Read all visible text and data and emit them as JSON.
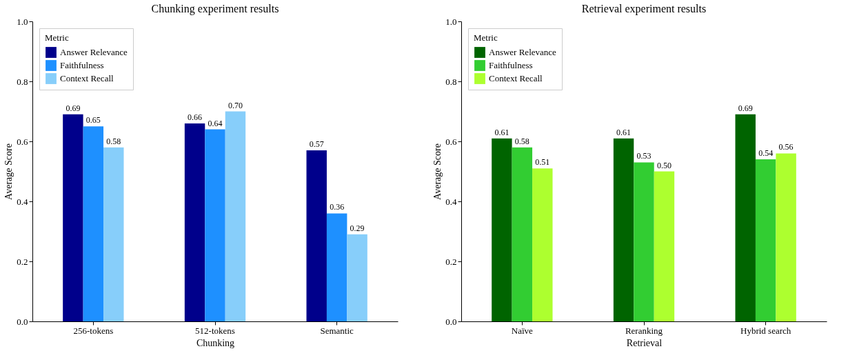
{
  "chart_data": [
    {
      "type": "bar",
      "title": "Chunking experiment results",
      "xlabel": "Chunking",
      "ylabel": "Average Score",
      "legend_title": "Metric",
      "legend": "top left",
      "grid": false,
      "categories": [
        "256-tokens",
        "512-tokens",
        "Semantic"
      ],
      "ylim": [
        0,
        1
      ],
      "yticks": [
        {
          "value": 0,
          "label": "0.0"
        },
        {
          "value": 0.2,
          "label": "0.2"
        },
        {
          "value": 0.4,
          "label": "0.4"
        },
        {
          "value": 0.6,
          "label": "0.6"
        },
        {
          "value": 0.8,
          "label": "0.8"
        },
        {
          "value": 1,
          "label": "1.0"
        }
      ],
      "series": [
        {
          "name": "Answer Relevance",
          "color": "#00008b",
          "values": [
            0.69,
            0.66,
            0.57
          ],
          "value_labels": [
            "0.69",
            "0.66",
            "0.57"
          ]
        },
        {
          "name": "Faithfulness",
          "color": "#1e90ff",
          "values": [
            0.65,
            0.64,
            0.36
          ],
          "value_labels": [
            "0.65",
            "0.64",
            "0.36"
          ]
        },
        {
          "name": "Context Recall",
          "color": "#87cefa",
          "values": [
            0.58,
            0.7,
            0.29
          ],
          "value_labels": [
            "0.58",
            "0.70",
            "0.29"
          ]
        }
      ]
    },
    {
      "type": "bar",
      "title": "Retrieval experiment results",
      "xlabel": "Retrieval",
      "ylabel": "Average Score",
      "legend_title": "Metric",
      "legend": "top left",
      "grid": false,
      "categories": [
        "Naïve",
        "Reranking",
        "Hybrid search"
      ],
      "ylim": [
        0,
        1
      ],
      "yticks": [
        {
          "value": 0,
          "label": "0.0"
        },
        {
          "value": 0.2,
          "label": "0.2"
        },
        {
          "value": 0.4,
          "label": "0.4"
        },
        {
          "value": 0.6,
          "label": "0.6"
        },
        {
          "value": 0.8,
          "label": "0.8"
        },
        {
          "value": 1,
          "label": "1.0"
        }
      ],
      "series": [
        {
          "name": "Answer Relevance",
          "color": "#006400",
          "values": [
            0.61,
            0.61,
            0.69
          ],
          "value_labels": [
            "0.61",
            "0.61",
            "0.69"
          ]
        },
        {
          "name": "Faithfulness",
          "color": "#32cd32",
          "values": [
            0.58,
            0.53,
            0.54
          ],
          "value_labels": [
            "0.58",
            "0.53",
            "0.54"
          ]
        },
        {
          "name": "Context Recall",
          "color": "#adff2f",
          "values": [
            0.51,
            0.5,
            0.56
          ],
          "value_labels": [
            "0.51",
            "0.50",
            "0.56"
          ]
        }
      ]
    }
  ]
}
